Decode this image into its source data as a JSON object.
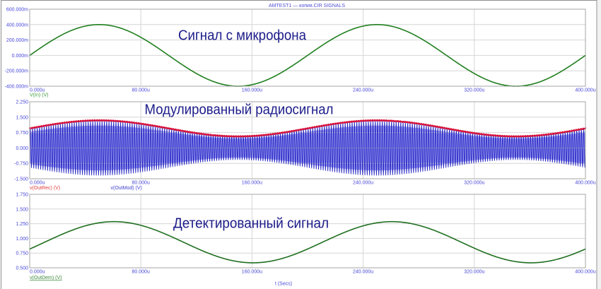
{
  "window": {
    "title": "AMTEST1 — копия.CIR SIGNALS"
  },
  "x_axis_label": "t (Secs)",
  "plots": [
    {
      "id": "input",
      "annotation": "Сигнал с микрофона",
      "y_ticks": [
        "600.000m",
        "400.000m",
        "200.000m",
        "0.000m",
        "-200.000m",
        "-400.000m"
      ],
      "x_ticks": [
        "0.000u",
        "80.000u",
        "160.000u",
        "240.000u",
        "320.000u",
        "400.000u"
      ],
      "legend": [
        {
          "label": "V(In) (V)",
          "color": "#3c9a3c"
        }
      ]
    },
    {
      "id": "modulated",
      "annotation": "Модулированный радиосигнал",
      "y_ticks": [
        "2.250",
        "1.500",
        "0.750",
        "0.000",
        "-0.750",
        "-1.500"
      ],
      "x_ticks": [
        "0.000u",
        "80.000u",
        "160.000u",
        "240.000u",
        "320.000u",
        "400.000u"
      ],
      "legend": [
        {
          "label": "v(OutRec) (V)",
          "color": "#e03c3c"
        },
        {
          "label": "v(OutMod) (V)",
          "color": "#4040d0"
        }
      ]
    },
    {
      "id": "demodulated",
      "annotation": "Детектированный сигнал",
      "y_ticks": [
        "1.750",
        "1.500",
        "1.250",
        "1.000",
        "0.750",
        "0.500"
      ],
      "x_ticks": [
        "0.000u",
        "80.000u",
        "160.000u",
        "240.000u",
        "320.000u",
        "400.000u"
      ],
      "legend": [
        {
          "label": "v(OutDem) (V)",
          "color": "#3c8a3c",
          "selected": true
        }
      ]
    }
  ],
  "colors": {
    "axis_text": "#4848d8",
    "annotation_text": "#1c1c8a",
    "title_text": "#5050d8",
    "grid": "#d6d6d6",
    "plot_border": "#a4a4a4",
    "background": "#ffffff"
  },
  "chart_data": [
    {
      "type": "line",
      "title": "Сигнал с микрофона",
      "xlabel": "t (Secs)",
      "ylabel": "",
      "x_unit": "us",
      "xlim": [
        0,
        400
      ],
      "ylim": [
        -0.4,
        0.6
      ],
      "x_ticks": [
        0,
        80,
        160,
        240,
        320,
        400
      ],
      "y_ticks": [
        0.6,
        0.4,
        0.2,
        0.0,
        -0.2,
        -0.4
      ],
      "grid": true,
      "legend_position": "bottom-left",
      "x": [
        0,
        10,
        20,
        30,
        40,
        50,
        60,
        70,
        80,
        90,
        100,
        110,
        120,
        130,
        140,
        150,
        160,
        170,
        180,
        190,
        200,
        210,
        220,
        230,
        240,
        250,
        260,
        270,
        280,
        290,
        300,
        310,
        320,
        330,
        340,
        350,
        360,
        370,
        380,
        390,
        400
      ],
      "series": [
        {
          "name": "V(In) (V)",
          "color": "#1f7f1f",
          "width": 1.6,
          "values": [
            0,
            0.124,
            0.235,
            0.324,
            0.38,
            0.4,
            0.38,
            0.324,
            0.235,
            0.124,
            0,
            -0.124,
            -0.235,
            -0.324,
            -0.38,
            -0.4,
            -0.38,
            -0.324,
            -0.235,
            -0.124,
            0,
            0.124,
            0.235,
            0.324,
            0.38,
            0.4,
            0.38,
            0.324,
            0.235,
            0.124,
            0,
            -0.124,
            -0.235,
            -0.324,
            -0.38,
            -0.4,
            -0.38,
            -0.324,
            -0.235,
            -0.124,
            0
          ],
          "model": {
            "type": "sine",
            "offset": 0,
            "amplitude": 0.4,
            "period_us": 200,
            "delay_us": 0
          }
        }
      ]
    },
    {
      "type": "line",
      "title": "Модулированный радиосигнал",
      "xlabel": "t (Secs)",
      "ylabel": "",
      "x_unit": "us",
      "xlim": [
        0,
        400
      ],
      "ylim": [
        -1.5,
        2.25
      ],
      "x_ticks": [
        0,
        80,
        160,
        240,
        320,
        400
      ],
      "y_ticks": [
        2.25,
        1.5,
        0.75,
        0.0,
        -0.75,
        -1.5
      ],
      "grid": true,
      "legend_position": "bottom-left",
      "x": [
        0,
        10,
        20,
        30,
        40,
        50,
        60,
        70,
        80,
        90,
        100,
        110,
        120,
        130,
        140,
        150,
        160,
        170,
        180,
        190,
        200,
        210,
        220,
        230,
        240,
        250,
        260,
        270,
        280,
        290,
        300,
        310,
        320,
        330,
        340,
        350,
        360,
        370,
        380,
        390,
        400
      ],
      "series": [
        {
          "name": "v(OutMod) (V)",
          "color": "#2a2ac4",
          "fill_color": "#9c9cf2",
          "width": 0.9,
          "envelope_max": [
            0.95,
            1.067,
            1.173,
            1.257,
            1.311,
            1.33,
            1.311,
            1.257,
            1.173,
            1.067,
            0.95,
            0.833,
            0.727,
            0.643,
            0.589,
            0.57,
            0.589,
            0.643,
            0.727,
            0.833,
            0.95,
            1.067,
            1.173,
            1.257,
            1.311,
            1.33,
            1.311,
            1.257,
            1.173,
            1.067,
            0.95,
            0.833,
            0.727,
            0.643,
            0.589,
            0.57,
            0.589,
            0.643,
            0.727,
            0.833,
            0.95
          ],
          "envelope_min": [
            -0.95,
            -1.067,
            -1.173,
            -1.257,
            -1.311,
            -1.33,
            -1.311,
            -1.257,
            -1.173,
            -1.067,
            -0.95,
            -0.833,
            -0.727,
            -0.643,
            -0.589,
            -0.57,
            -0.589,
            -0.643,
            -0.727,
            -0.833,
            -0.95,
            -1.067,
            -1.173,
            -1.257,
            -1.311,
            -1.33,
            -1.311,
            -1.257,
            -1.173,
            -1.067,
            -0.95,
            -0.833,
            -0.727,
            -0.643,
            -0.589,
            -0.57,
            -0.589,
            -0.643,
            -0.727,
            -0.833,
            -0.95
          ],
          "model": {
            "type": "am",
            "offset": 0.95,
            "amplitude": 0.38,
            "period_us": 200,
            "delay_us": 0,
            "carrier_cycles": 240,
            "band": 0.82
          }
        },
        {
          "name": "v(OutRec) (V)",
          "color": "#d8143c",
          "width": 2.2,
          "values": [
            0.97,
            1.091,
            1.199,
            1.286,
            1.341,
            1.36,
            1.341,
            1.286,
            1.199,
            1.091,
            0.97,
            0.849,
            0.741,
            0.654,
            0.599,
            0.58,
            0.599,
            0.654,
            0.741,
            0.849,
            0.97,
            1.091,
            1.199,
            1.286,
            1.341,
            1.36,
            1.341,
            1.286,
            1.199,
            1.091,
            0.97,
            0.849,
            0.741,
            0.654,
            0.599,
            0.58,
            0.599,
            0.654,
            0.741,
            0.849,
            0.97
          ],
          "model": {
            "type": "sine",
            "offset": 0.97,
            "amplitude": 0.39,
            "period_us": 200,
            "delay_us": 0,
            "ripple": 0.04,
            "ripple_cycles": 240
          }
        }
      ]
    },
    {
      "type": "line",
      "title": "Детектированный сигнал",
      "xlabel": "t (Secs)",
      "ylabel": "",
      "x_unit": "us",
      "xlim": [
        0,
        400
      ],
      "ylim": [
        0.5,
        1.75
      ],
      "x_ticks": [
        0,
        80,
        160,
        240,
        320,
        400
      ],
      "y_ticks": [
        1.75,
        1.5,
        1.25,
        1.0,
        0.75,
        0.5
      ],
      "grid": true,
      "legend_position": "bottom-left",
      "x": [
        0,
        10,
        20,
        30,
        40,
        50,
        60,
        70,
        80,
        90,
        100,
        110,
        120,
        130,
        140,
        150,
        160,
        170,
        180,
        190,
        200,
        210,
        220,
        230,
        240,
        250,
        260,
        270,
        280,
        290,
        300,
        310,
        320,
        330,
        340,
        350,
        360,
        370,
        380,
        390,
        400
      ],
      "series": [
        {
          "name": "v(OutDem) (V)",
          "color": "#1f6f1f",
          "width": 1.6,
          "values": [
            0.82,
            0.927,
            1.036,
            1.134,
            1.214,
            1.265,
            1.285,
            1.27,
            1.223,
            1.147,
            1.05,
            0.943,
            0.834,
            0.736,
            0.656,
            0.605,
            0.585,
            0.6,
            0.647,
            0.723,
            0.82,
            0.927,
            1.036,
            1.134,
            1.214,
            1.265,
            1.285,
            1.27,
            1.223,
            1.147,
            1.05,
            0.943,
            0.834,
            0.736,
            0.656,
            0.605,
            0.585,
            0.6,
            0.647,
            0.723,
            0.82
          ],
          "model": {
            "type": "sine",
            "offset": 0.935,
            "amplitude": 0.35,
            "period_us": 200,
            "delay_us": 10.7
          }
        }
      ]
    }
  ]
}
